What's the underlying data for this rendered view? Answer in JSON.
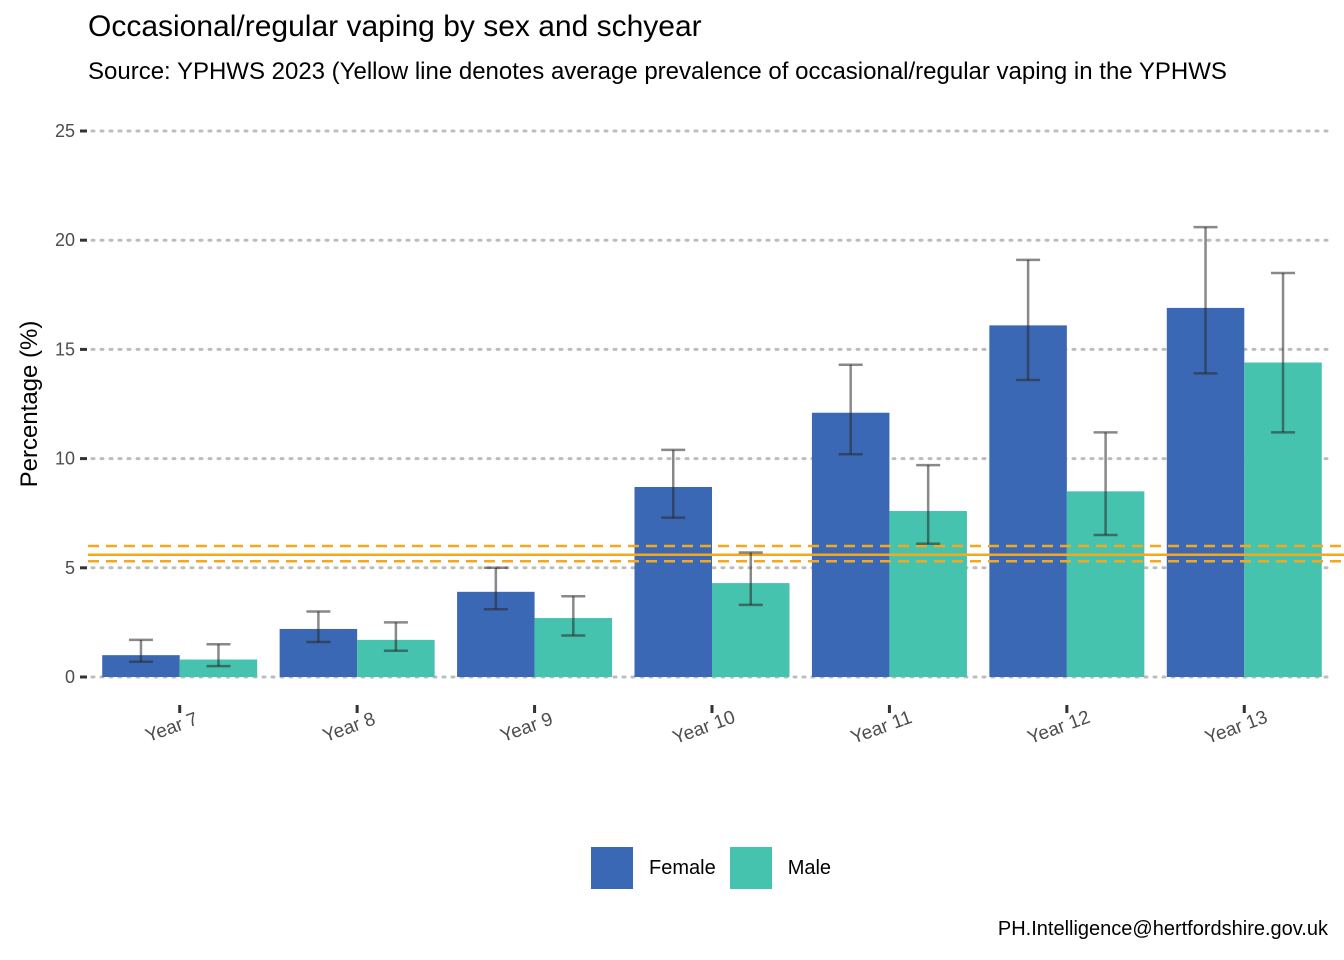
{
  "chart_data": {
    "type": "bar",
    "title": "Occasional/regular vaping by sex and schyear",
    "subtitle": "Source: YPHWS 2023 (Yellow line denotes average prevalence of occasional/regular vaping in the YPHWS",
    "caption": "PH.Intelligence@hertfordshire.gov.uk",
    "xlabel": "",
    "ylabel": "Percentage (%)",
    "ylim": [
      0,
      25
    ],
    "yticks": [
      "0",
      "5",
      "10",
      "15",
      "20",
      "25"
    ],
    "grid": "horizontal dotted",
    "legend_position": "bottom",
    "categories": [
      "Year 7",
      "Year 8",
      "Year 9",
      "Year 10",
      "Year 11",
      "Year 12",
      "Year 13"
    ],
    "series": [
      {
        "name": "Female",
        "color": "#3a68b4",
        "values": [
          1.0,
          2.2,
          3.9,
          8.7,
          12.1,
          16.1,
          16.9
        ],
        "ci_lower": [
          0.7,
          1.6,
          3.1,
          7.3,
          10.2,
          13.6,
          13.9
        ],
        "ci_upper": [
          1.7,
          3.0,
          5.0,
          10.4,
          14.3,
          19.1,
          20.6
        ]
      },
      {
        "name": "Male",
        "color": "#46c3ae",
        "values": [
          0.8,
          1.7,
          2.7,
          4.3,
          7.6,
          8.5,
          14.4
        ],
        "ci_lower": [
          0.5,
          1.2,
          1.9,
          3.3,
          6.1,
          6.5,
          11.2
        ],
        "ci_upper": [
          1.5,
          2.5,
          3.7,
          5.7,
          9.7,
          11.2,
          18.5
        ]
      }
    ],
    "reference_line": {
      "color": "#f5a81c",
      "value": 5.6,
      "lower": 5.3,
      "upper": 6.0
    }
  }
}
